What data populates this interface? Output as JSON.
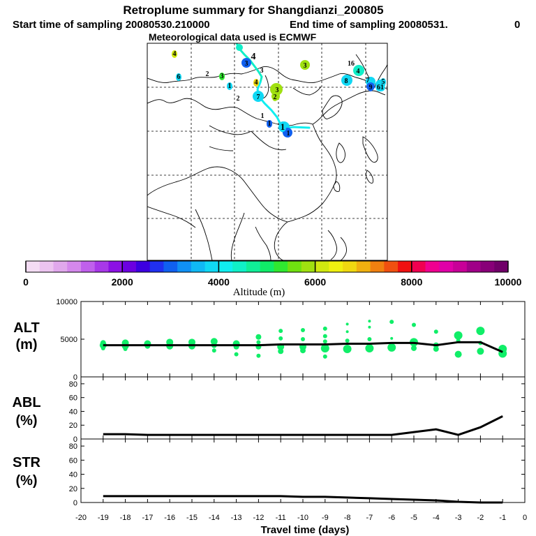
{
  "header": {
    "title": "Retroplume summary for Shangdianzi_200805",
    "start_label": "Start time of sampling 20080530.210000",
    "end_label": "End time of sampling 20080531.",
    "end_tail": "0",
    "met_label": "Meteorological data used is ECMWF"
  },
  "colorbar": {
    "colors": [
      "#f4dcf4",
      "#ecc4f0",
      "#e0a8ec",
      "#d488ec",
      "#c060ec",
      "#a838e8",
      "#8c10e4",
      "#6c00e0",
      "#3c00e0",
      "#2030f0",
      "#1060f0",
      "#1090f4",
      "#10b8f4",
      "#10d8f4",
      "#10eef0",
      "#10f0c8",
      "#10ee98",
      "#10ec68",
      "#30e830",
      "#70e010",
      "#a0e010",
      "#d0e810",
      "#f0f010",
      "#f0d810",
      "#f0b010",
      "#f08010",
      "#f05010",
      "#f01010",
      "#f00050",
      "#f00090",
      "#e000a8",
      "#c80098",
      "#a00088",
      "#880078",
      "#700068"
    ],
    "ticks": [
      "0",
      "2000",
      "4000",
      "6000",
      "8000",
      "10000"
    ],
    "label": "Altitude (m)"
  },
  "map": {
    "labels": [
      {
        "t": "4",
        "c": "#d0e810"
      },
      {
        "t": "6",
        "c": "#10d8f4"
      },
      {
        "t": "2",
        "c": ""
      },
      {
        "t": "3",
        "c": "#30e830"
      },
      {
        "t": "1",
        "c": "#10d8f4"
      },
      {
        "t": "4",
        "c": ""
      },
      {
        "t": "3",
        "c": "#1060f0"
      },
      {
        "t": "3",
        "c": ""
      },
      {
        "t": "3",
        "c": "#a0e010"
      },
      {
        "t": "16",
        "c": ""
      },
      {
        "t": "4",
        "c": "#10eec8"
      },
      {
        "t": "8",
        "c": "#10d8f4"
      },
      {
        "t": "7",
        "c": ""
      },
      {
        "t": "9",
        "c": "#1060f0"
      },
      {
        "t": "5",
        "c": "#10d8f4"
      },
      {
        "t": "61",
        "c": "#10d8f4"
      },
      {
        "t": "4",
        "c": "#f0d810"
      },
      {
        "t": "2",
        "c": ""
      },
      {
        "t": "7",
        "c": "#10d8f4"
      },
      {
        "t": "2",
        "c": "#a0e010"
      },
      {
        "t": "3",
        "c": "#a0e010"
      },
      {
        "t": "1",
        "c": ""
      },
      {
        "t": "1",
        "c": "#1060f0"
      },
      {
        "t": "1",
        "c": "#10d8f4"
      },
      {
        "t": "1",
        "c": "#1060f0"
      }
    ]
  },
  "panels": {
    "alt_label": "ALT",
    "abl_label": "ABL",
    "str_label": "STR",
    "unit_m": "(m)",
    "unit_pct": "(%)"
  },
  "chart_data": [
    {
      "type": "scatter",
      "name": "ALT",
      "ylabel": "ALT (m)",
      "xlabel": "Travel time (days)",
      "xlim": [
        -20,
        0
      ],
      "ylim": [
        0,
        10000
      ],
      "yticks": [
        "0",
        "5000",
        "10000"
      ],
      "xticks": [
        "-20",
        "-19",
        "-18",
        "-17",
        "-16",
        "-15",
        "-14",
        "-13",
        "-12",
        "-11",
        "-10",
        "-9",
        "-8",
        "-7",
        "-6",
        "-5",
        "-4",
        "-3",
        "-2",
        "-1",
        "0"
      ],
      "mean_line": {
        "x": [
          -19,
          -18,
          -17,
          -16,
          -15,
          -14,
          -13,
          -12,
          -11,
          -10,
          -9,
          -8,
          -7,
          -6,
          -5,
          -4,
          -3,
          -2,
          -1
        ],
        "y": [
          4200,
          4200,
          4200,
          4200,
          4200,
          4200,
          4200,
          4200,
          4300,
          4300,
          4300,
          4400,
          4400,
          4500,
          4500,
          4200,
          4600,
          4600,
          3300
        ]
      },
      "points": [
        {
          "x": -19,
          "y": 4500,
          "r": 4
        },
        {
          "x": -19,
          "y": 4200,
          "r": 5
        },
        {
          "x": -19,
          "y": 3800,
          "r": 3
        },
        {
          "x": -18,
          "y": 4500,
          "r": 5
        },
        {
          "x": -18,
          "y": 4100,
          "r": 5
        },
        {
          "x": -18,
          "y": 3700,
          "r": 3
        },
        {
          "x": -17,
          "y": 4400,
          "r": 5
        },
        {
          "x": -17,
          "y": 4100,
          "r": 4
        },
        {
          "x": -16,
          "y": 4600,
          "r": 5
        },
        {
          "x": -16,
          "y": 4100,
          "r": 5
        },
        {
          "x": -15,
          "y": 4600,
          "r": 5
        },
        {
          "x": -15,
          "y": 4100,
          "r": 5
        },
        {
          "x": -14,
          "y": 4700,
          "r": 5
        },
        {
          "x": -14,
          "y": 4200,
          "r": 4
        },
        {
          "x": -14,
          "y": 3500,
          "r": 3
        },
        {
          "x": -13,
          "y": 4400,
          "r": 5
        },
        {
          "x": -13,
          "y": 4000,
          "r": 4
        },
        {
          "x": -13,
          "y": 3000,
          "r": 3
        },
        {
          "x": -12,
          "y": 5300,
          "r": 4
        },
        {
          "x": -12,
          "y": 4600,
          "r": 3
        },
        {
          "x": -12,
          "y": 4000,
          "r": 4
        },
        {
          "x": -12,
          "y": 2800,
          "r": 3
        },
        {
          "x": -11,
          "y": 6100,
          "r": 3
        },
        {
          "x": -11,
          "y": 5100,
          "r": 3
        },
        {
          "x": -11,
          "y": 4000,
          "r": 5
        },
        {
          "x": -11,
          "y": 3400,
          "r": 4
        },
        {
          "x": -10,
          "y": 6200,
          "r": 3
        },
        {
          "x": -10,
          "y": 5000,
          "r": 3
        },
        {
          "x": -10,
          "y": 4000,
          "r": 5
        },
        {
          "x": -10,
          "y": 3500,
          "r": 4
        },
        {
          "x": -9,
          "y": 6400,
          "r": 3
        },
        {
          "x": -9,
          "y": 5400,
          "r": 3
        },
        {
          "x": -9,
          "y": 4700,
          "r": 3
        },
        {
          "x": -9,
          "y": 3800,
          "r": 6
        },
        {
          "x": -9,
          "y": 2700,
          "r": 3
        },
        {
          "x": -8,
          "y": 7000,
          "r": 2
        },
        {
          "x": -8,
          "y": 6000,
          "r": 2
        },
        {
          "x": -8,
          "y": 4800,
          "r": 3
        },
        {
          "x": -8,
          "y": 3700,
          "r": 6
        },
        {
          "x": -7,
          "y": 7400,
          "r": 2
        },
        {
          "x": -7,
          "y": 6600,
          "r": 2
        },
        {
          "x": -7,
          "y": 5000,
          "r": 3
        },
        {
          "x": -7,
          "y": 3800,
          "r": 6
        },
        {
          "x": -6,
          "y": 7300,
          "r": 3
        },
        {
          "x": -6,
          "y": 5100,
          "r": 2
        },
        {
          "x": -6,
          "y": 3900,
          "r": 6
        },
        {
          "x": -5,
          "y": 6900,
          "r": 3
        },
        {
          "x": -5,
          "y": 4600,
          "r": 6
        },
        {
          "x": -5,
          "y": 3800,
          "r": 4
        },
        {
          "x": -4,
          "y": 6000,
          "r": 3
        },
        {
          "x": -4,
          "y": 4200,
          "r": 4
        },
        {
          "x": -4,
          "y": 3700,
          "r": 4
        },
        {
          "x": -3,
          "y": 5500,
          "r": 6
        },
        {
          "x": -3,
          "y": 4800,
          "r": 3
        },
        {
          "x": -3,
          "y": 3000,
          "r": 5
        },
        {
          "x": -2,
          "y": 6100,
          "r": 6
        },
        {
          "x": -2,
          "y": 4500,
          "r": 3
        },
        {
          "x": -2,
          "y": 3400,
          "r": 5
        },
        {
          "x": -1,
          "y": 3700,
          "r": 6
        },
        {
          "x": -1,
          "y": 3100,
          "r": 6
        }
      ]
    },
    {
      "type": "line",
      "name": "ABL",
      "ylabel": "ABL (%)",
      "xlim": [
        -20,
        0
      ],
      "ylim": [
        0,
        90
      ],
      "yticks": [
        "0",
        "20",
        "40",
        "60",
        "80"
      ],
      "x": [
        -19,
        -18,
        -17,
        -16,
        -15,
        -14,
        -13,
        -12,
        -11,
        -10,
        -9,
        -8,
        -7,
        -6,
        -5,
        -4,
        -3,
        -2,
        -1
      ],
      "y": [
        7,
        7,
        6,
        6,
        6,
        6,
        6,
        6,
        6,
        6,
        6,
        6,
        6,
        6,
        10,
        14,
        6,
        17,
        33
      ]
    },
    {
      "type": "line",
      "name": "STR",
      "ylabel": "STR (%)",
      "xlim": [
        -20,
        0
      ],
      "ylim": [
        0,
        90
      ],
      "yticks": [
        "0",
        "20",
        "40",
        "60",
        "80"
      ],
      "x": [
        -19,
        -18,
        -17,
        -16,
        -15,
        -14,
        -13,
        -12,
        -11,
        -10,
        -9,
        -8,
        -7,
        -6,
        -5,
        -4,
        -3,
        -2,
        -1
      ],
      "y": [
        9,
        9,
        9,
        9,
        9,
        9,
        9,
        9,
        9,
        8,
        8,
        7,
        6,
        5,
        4,
        3,
        1,
        0,
        0
      ]
    }
  ]
}
